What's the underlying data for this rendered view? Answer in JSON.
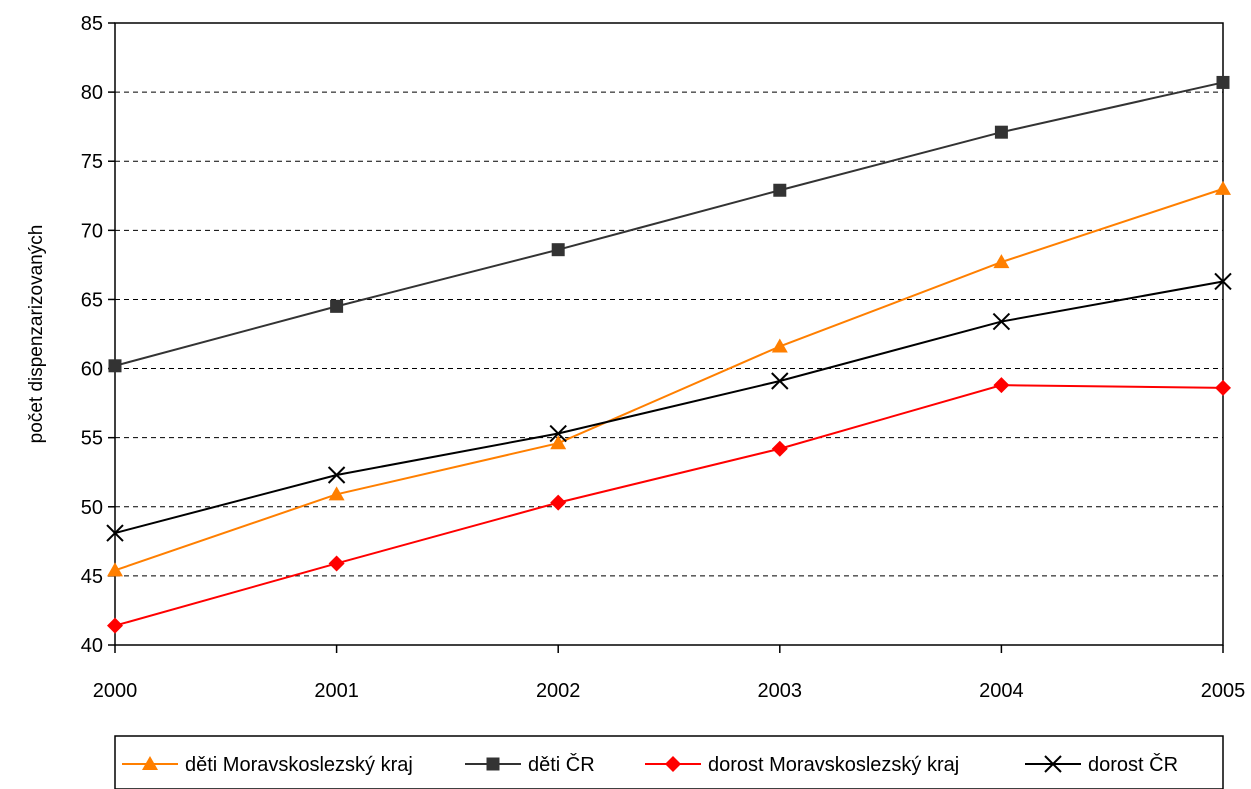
{
  "chart_data": {
    "type": "line",
    "title": "",
    "xlabel": "",
    "ylabel": "počet dispenzarizovaných",
    "x": [
      "2000",
      "2001",
      "2002",
      "2003",
      "2004",
      "2005"
    ],
    "ylim": [
      40,
      85
    ],
    "yticks": [
      40,
      45,
      50,
      55,
      60,
      65,
      70,
      75,
      80,
      85
    ],
    "grid": "horizontal dashed",
    "legend": "bottom",
    "series": [
      {
        "name": "děti Moravskoslezský kraj",
        "values": [
          45.4,
          50.9,
          54.6,
          61.6,
          67.7,
          73.0
        ],
        "color": "#ff7f00",
        "marker": "triangle"
      },
      {
        "name": "děti ČR",
        "values": [
          60.2,
          64.5,
          68.6,
          72.9,
          77.1,
          80.7
        ],
        "color": "#333333",
        "marker": "square"
      },
      {
        "name": "dorost Moravskoslezský kraj",
        "values": [
          41.4,
          45.9,
          50.3,
          54.2,
          58.8,
          58.6
        ],
        "color": "#ff0000",
        "marker": "diamond"
      },
      {
        "name": "dorost ČR",
        "values": [
          48.1,
          52.3,
          55.3,
          59.1,
          63.4,
          66.3
        ],
        "color": "#000000",
        "marker": "x"
      }
    ]
  }
}
